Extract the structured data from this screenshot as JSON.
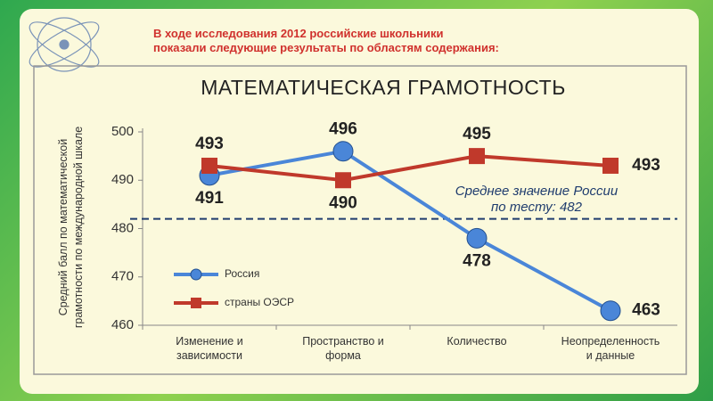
{
  "header": {
    "lines": [
      "В ходе исследования 2012 российские школьники",
      "показали следующие результаты по областям содержания:"
    ]
  },
  "chart_data": {
    "type": "line",
    "title": "МАТЕМАТИЧЕСКАЯ ГРАМОТНОСТЬ",
    "y_label": "Средний балл по математической грамотности по международной шкале",
    "categories": [
      "Изменение и зависимости",
      "Пространство и форма",
      "Количество",
      "Неопределенность и данные"
    ],
    "series": [
      {
        "name": "Россия",
        "color": "#4a86d8",
        "values": [
          491,
          496,
          478,
          463
        ]
      },
      {
        "name": "страны ОЭСР",
        "color": "#c0392b",
        "values": [
          493,
          490,
          495,
          493
        ]
      }
    ],
    "ylim": [
      460,
      500
    ],
    "yticks": [
      460,
      470,
      480,
      490,
      500
    ],
    "reference_line": {
      "value": 482,
      "label": "Среднее значение России по тесту: 482"
    },
    "legend": "lower left"
  }
}
